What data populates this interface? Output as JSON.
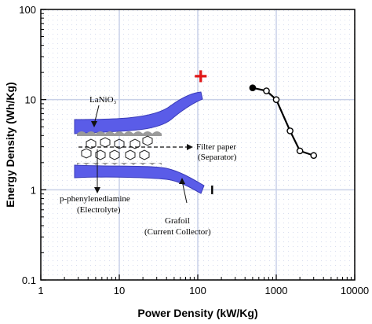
{
  "chart_data": {
    "type": "scatter",
    "xlabel": "Power Density (kW/Kg)",
    "ylabel": "Energy Density (Wh/Kg)",
    "xscale": "log",
    "yscale": "log",
    "xlim": [
      1,
      10000
    ],
    "ylim": [
      0.1,
      100
    ],
    "grid": true,
    "x_ticks": [
      "1",
      "10",
      "100",
      "1000",
      "10000"
    ],
    "y_ticks": [
      "0.1",
      "1",
      "10",
      "100"
    ],
    "series": [
      {
        "x": [
          500,
          750,
          1000,
          1500,
          2000,
          3000
        ],
        "y": [
          13.5,
          12.5,
          10,
          4.5,
          2.7,
          2.4
        ],
        "markers": [
          "filled",
          "open",
          "open",
          "open",
          "open",
          "open"
        ],
        "color": "#000000"
      }
    ],
    "annotations": [
      {
        "text": "LaNiO₃"
      },
      {
        "text": "Filter paper"
      },
      {
        "text": "(Separator)"
      },
      {
        "text": "p-phenylenediamine"
      },
      {
        "text": "(Electrolyte)"
      },
      {
        "text": "Grafoil"
      },
      {
        "text": "(Current Collector)"
      }
    ],
    "symbols": {
      "plus": "+",
      "minus": "−"
    },
    "colors": {
      "electrode": "#5a5ce8",
      "plus": "#e01818",
      "grid": "#c9d1e8",
      "series": "#000000"
    }
  }
}
